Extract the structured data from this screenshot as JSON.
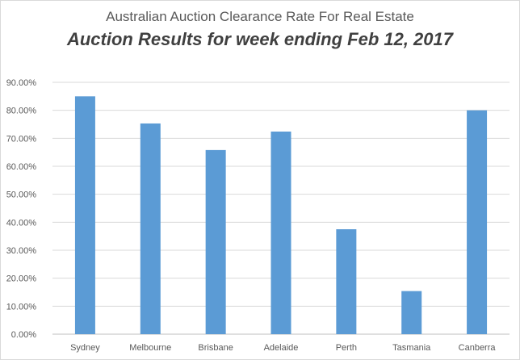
{
  "chart_data": {
    "type": "bar",
    "title": "Australian Auction Clearance Rate For Real Estate",
    "subtitle": "Auction Results for week ending Feb 12, 2017",
    "categories": [
      "Sydney",
      "Melbourne",
      "Brisbane",
      "Adelaide",
      "Perth",
      "Tasmania",
      "Canberra"
    ],
    "values": [
      85.0,
      75.3,
      65.8,
      72.4,
      37.5,
      15.4,
      80.0
    ],
    "value_format": "percent",
    "ylim": [
      0,
      90
    ],
    "yticks": [
      "0.00%",
      "10.00%",
      "20.00%",
      "30.00%",
      "40.00%",
      "50.00%",
      "60.00%",
      "70.00%",
      "80.00%",
      "90.00%"
    ],
    "xlabel": "",
    "ylabel": "",
    "grid": true,
    "legend": "none",
    "colors": {
      "bar": "#5b9bd5",
      "grid": "#d9d9d9",
      "axis": "#bfbfbf"
    }
  }
}
